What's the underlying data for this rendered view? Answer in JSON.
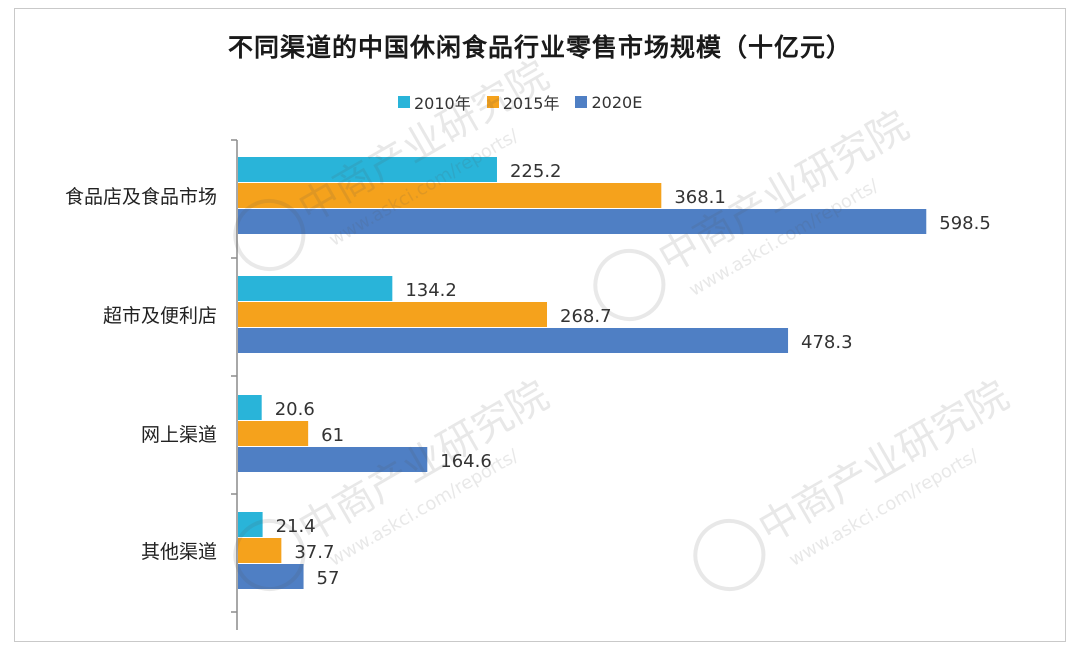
{
  "chart_data": {
    "type": "bar",
    "orientation": "horizontal",
    "title": "不同渠道的中国休闲食品行业零售市场规模（十亿元）",
    "categories": [
      "食品店及食品市场",
      "超市及便利店",
      "网上渠道",
      "其他渠道"
    ],
    "series": [
      {
        "name": "2010年",
        "color": "#29b4d9",
        "values": [
          225.2,
          134.2,
          20.6,
          21.4
        ],
        "labels": [
          "225.2",
          "134.2",
          "20.6",
          "21.4"
        ]
      },
      {
        "name": "2015年",
        "color": "#f5a21c",
        "values": [
          368.1,
          268.7,
          61,
          37.7
        ],
        "labels": [
          "368.1",
          "268.7",
          "61",
          "37.7"
        ]
      },
      {
        "name": "2020E",
        "color": "#4f7fc4",
        "values": [
          598.5,
          478.3,
          164.6,
          57
        ],
        "labels": [
          "598.5",
          "478.3",
          "164.6",
          "57"
        ]
      }
    ],
    "xlim": [
      0,
      600
    ],
    "grid": false,
    "legend_position": "top"
  },
  "watermark": {
    "text": "中商产业研究院",
    "url": "www.askci.com/reports/"
  }
}
